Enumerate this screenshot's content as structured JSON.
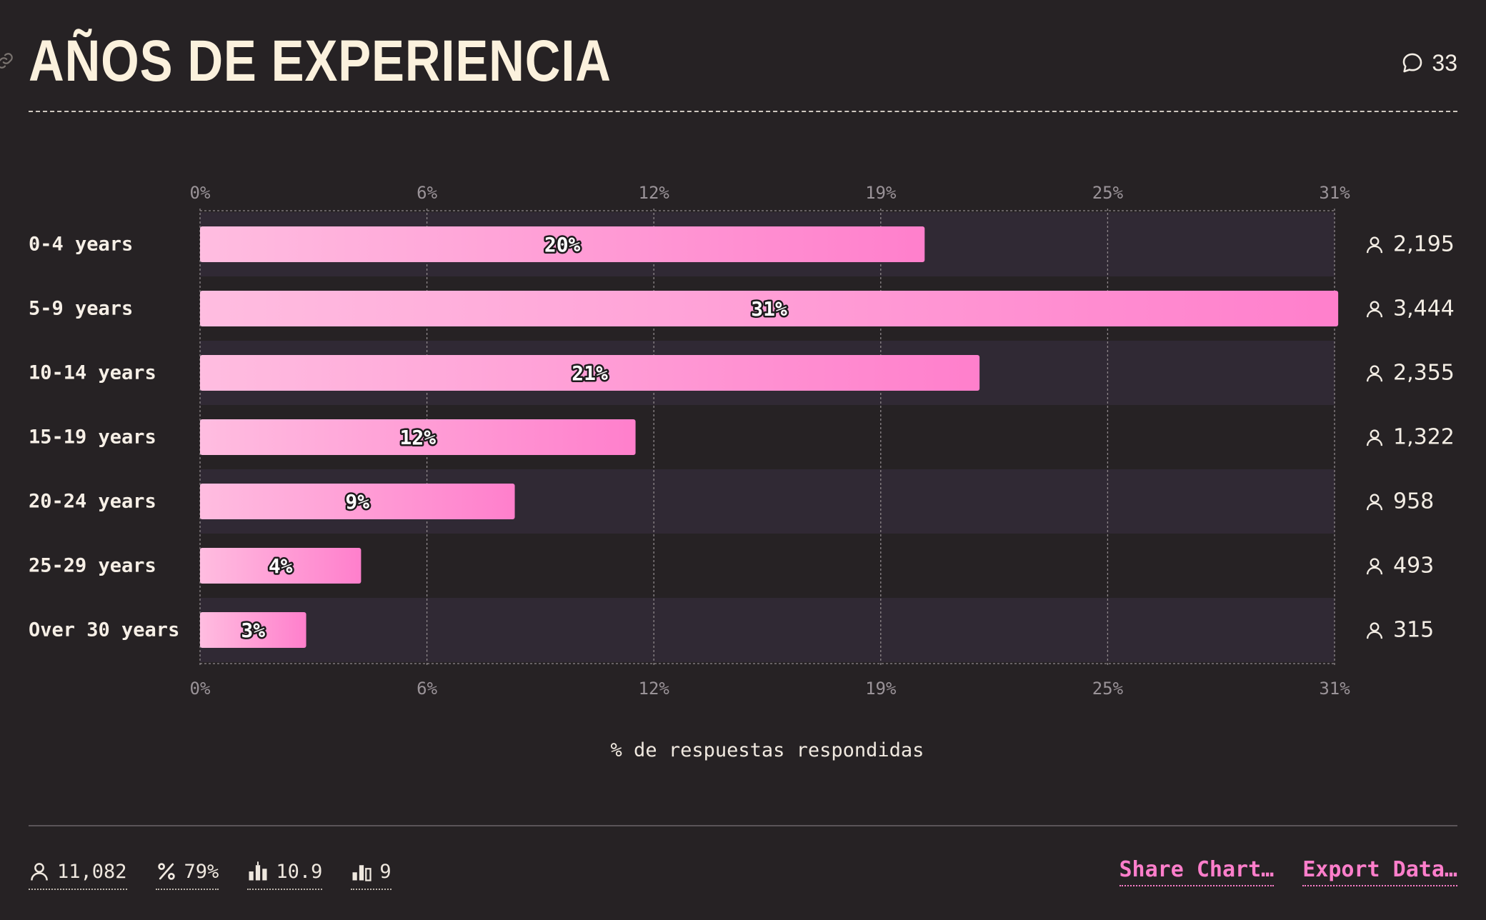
{
  "header": {
    "title": "AÑOS DE EXPERIENCIA",
    "comment_count": "33"
  },
  "chart_data": {
    "type": "bar",
    "orientation": "horizontal",
    "title": "AÑOS DE EXPERIENCIA",
    "xlabel": "% de respuestas respondidas",
    "ylabel": "",
    "xlim": [
      0,
      31
    ],
    "x_ticks": [
      "0%",
      "6%",
      "12%",
      "19%",
      "25%",
      "31%"
    ],
    "categories": [
      "0-4 years",
      "5-9 years",
      "10-14 years",
      "15-19 years",
      "20-24 years",
      "25-29 years",
      "Over 30 years"
    ],
    "values": [
      19.8,
      31.1,
      21.3,
      11.9,
      8.6,
      4.4,
      2.9
    ],
    "value_labels": [
      "20%",
      "31%",
      "21%",
      "12%",
      "9%",
      "4%",
      "3%"
    ],
    "counts": [
      "2,195",
      "3,444",
      "2,355",
      "1,322",
      "958",
      "493",
      "315"
    ],
    "colors": {
      "bar_start": "#ffbde0",
      "bar_end": "#ff7fcc",
      "stripe": "#302934"
    }
  },
  "footer": {
    "stats": [
      {
        "icon": "person-icon",
        "value": "11,082"
      },
      {
        "icon": "percent-icon",
        "value": "79%"
      },
      {
        "icon": "average-bars-icon",
        "value": "10.9"
      },
      {
        "icon": "bars-icon",
        "value": "9"
      }
    ],
    "share_label": "Share Chart…",
    "export_label": "Export Data…"
  }
}
